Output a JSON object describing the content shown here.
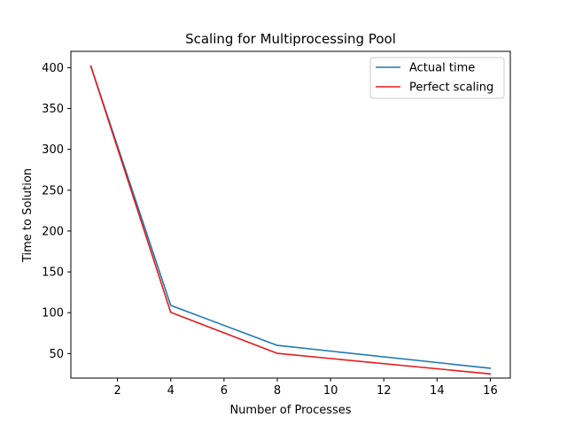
{
  "chart_data": {
    "type": "line",
    "title": "Scaling for Multiprocessing Pool",
    "xlabel": "Number of Processes",
    "ylabel": "Time to Solution",
    "x": [
      1,
      4,
      8,
      16
    ],
    "xlim": [
      0.25,
      16.75
    ],
    "ylim": [
      20,
      420
    ],
    "xticks": [
      2,
      4,
      6,
      8,
      10,
      12,
      14,
      16
    ],
    "yticks": [
      50,
      100,
      150,
      200,
      250,
      300,
      350,
      400
    ],
    "grid": false,
    "legend_position": "top-right",
    "series": [
      {
        "name": "Actual time",
        "color": "#1f77b4",
        "values": [
          402,
          109,
          60,
          32
        ]
      },
      {
        "name": "Perfect scaling",
        "color": "#e41a1c",
        "values": [
          402,
          100.5,
          50.25,
          25.1
        ]
      }
    ]
  }
}
